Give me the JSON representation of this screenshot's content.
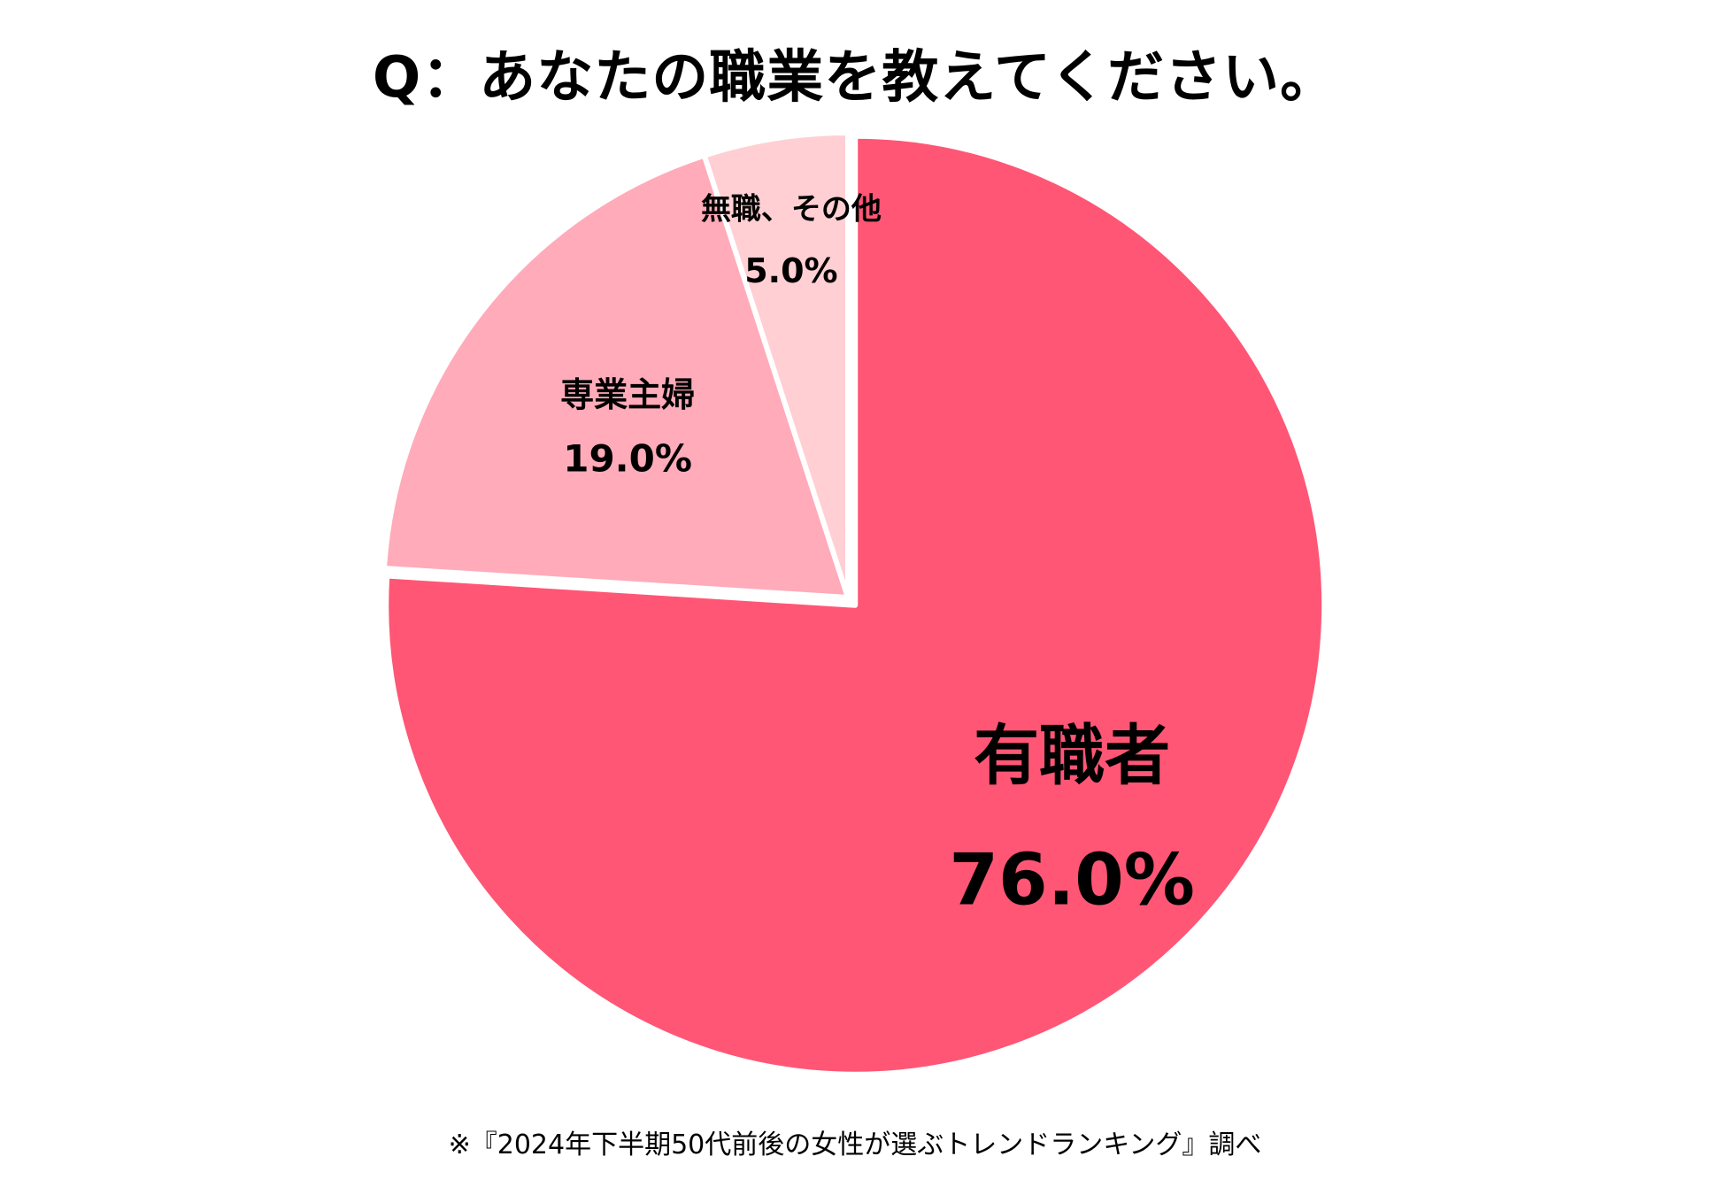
{
  "title": "Q：あなたの職業を教えてください。",
  "footnote": "※『2024年下半期50代前後の女性が選ぶトレンドランキング』調べ",
  "chart_data": {
    "type": "pie",
    "title": "Q：あなたの職業を教えてください。",
    "start": "12 o'clock, clockwise",
    "slices": [
      {
        "label": "有職者",
        "value": 76.0,
        "value_label": "76.0%",
        "color": "#FF5675",
        "exploded": true
      },
      {
        "label": "専業主婦",
        "value": 19.0,
        "value_label": "19.0%",
        "color": "#FFABB9",
        "exploded": false
      },
      {
        "label": "無職、その他",
        "value": 5.0,
        "value_label": "5.0%",
        "color": "#FFCFD3",
        "exploded": false
      }
    ]
  }
}
